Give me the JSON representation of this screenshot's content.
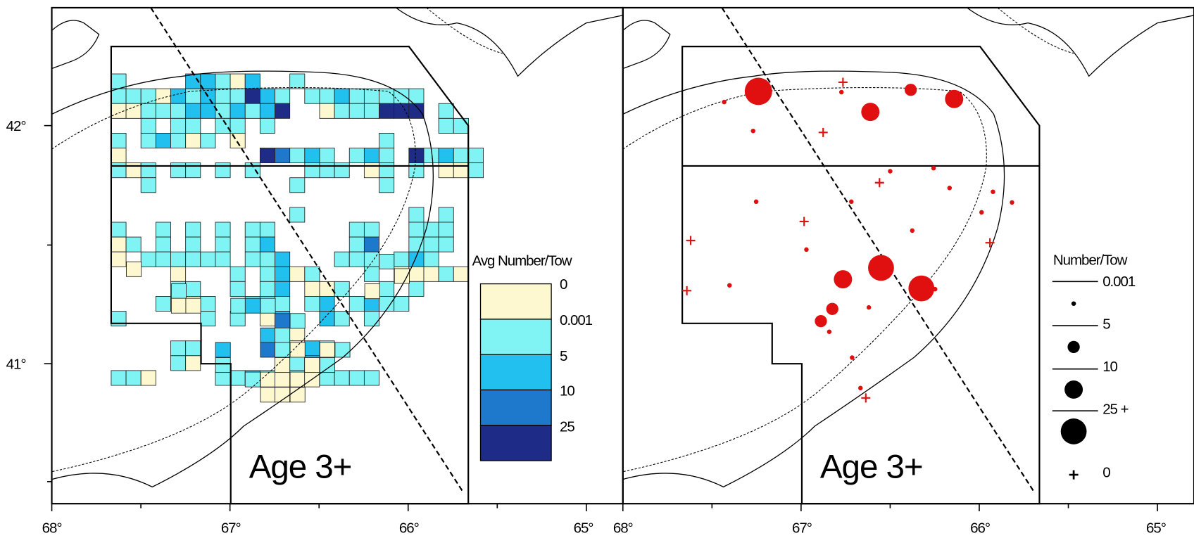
{
  "left_panel": {
    "longitude_labels": [
      "68°",
      "67°",
      "66°",
      "65°"
    ],
    "latitude_labels": [
      "42°",
      "41°"
    ],
    "age_label": "Age 3+",
    "legend": {
      "title": "Avg Number/Tow",
      "labels": [
        "0",
        "0.001",
        "5",
        "10",
        "25"
      ]
    }
  },
  "right_panel": {
    "longitude_labels": [
      "68°",
      "67°",
      "66°",
      "65°"
    ],
    "age_label": "Age 3+",
    "legend": {
      "title": "Number/Tow",
      "labels": [
        "0.001",
        "5",
        "10",
        "25 +",
        "0"
      ]
    }
  }
}
